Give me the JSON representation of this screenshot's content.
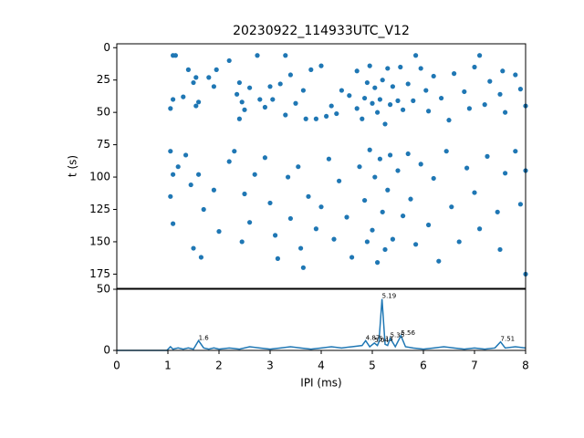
{
  "chart_data": [
    {
      "type": "scatter",
      "title": "20230922_114933UTC_V12",
      "ylabel": "t (s)",
      "color": "#1f77b4",
      "xlim": [
        0,
        8
      ],
      "ylim": [
        -3,
        186
      ],
      "y_inverted": true,
      "yticks": [
        0,
        25,
        50,
        75,
        100,
        125,
        150,
        175
      ],
      "x": [
        1.1,
        1.15,
        1.4,
        1.5,
        1.55,
        1.1,
        1.05,
        1.3,
        1.55,
        1.6,
        1.8,
        1.9,
        1.95,
        2.2,
        2.35,
        2.4,
        2.45,
        2.5,
        2.6,
        2.4,
        2.8,
        2.75,
        2.9,
        3.0,
        3.05,
        3.2,
        3.3,
        3.4,
        3.5,
        3.65,
        3.7,
        3.8,
        3.9,
        4.0,
        4.1,
        4.2,
        4.3,
        4.4,
        4.55,
        4.7,
        4.7,
        4.8,
        4.85,
        4.9,
        4.95,
        5.0,
        5.05,
        5.1,
        5.15,
        5.2,
        5.25,
        5.3,
        5.35,
        5.4,
        5.5,
        5.55,
        5.6,
        5.7,
        5.8,
        5.95,
        6.05,
        6.1,
        6.2,
        6.35,
        6.5,
        6.6,
        6.8,
        6.9,
        7.0,
        7.2,
        7.3,
        7.5,
        7.55,
        7.6,
        7.8,
        7.9,
        8.0,
        3.3,
        5.85,
        7.1,
        1.05,
        1.1,
        1.05,
        1.1,
        1.2,
        1.35,
        1.45,
        1.6,
        1.7,
        1.5,
        1.65,
        1.9,
        2.0,
        2.2,
        2.3,
        2.5,
        2.6,
        2.45,
        2.7,
        2.9,
        3.0,
        3.1,
        3.15,
        3.35,
        3.4,
        3.55,
        3.6,
        3.65,
        3.75,
        3.9,
        4.0,
        4.15,
        4.25,
        4.35,
        4.5,
        4.6,
        4.75,
        4.85,
        4.9,
        4.95,
        5.0,
        5.05,
        5.1,
        5.15,
        5.2,
        5.25,
        5.3,
        5.35,
        5.4,
        5.5,
        5.6,
        5.7,
        5.75,
        5.85,
        5.95,
        6.1,
        6.2,
        6.3,
        6.45,
        6.55,
        6.7,
        6.85,
        7.0,
        7.1,
        7.25,
        7.45,
        7.5,
        7.6,
        7.8,
        7.9,
        8.0,
        8.0
      ],
      "values": [
        6,
        6,
        17,
        27,
        23,
        40,
        47,
        38,
        45,
        42,
        23,
        30,
        17,
        10,
        36,
        27,
        42,
        48,
        31,
        55,
        40,
        6,
        46,
        30,
        40,
        28,
        52,
        21,
        43,
        33,
        55,
        17,
        55,
        14,
        53,
        45,
        51,
        33,
        37,
        18,
        47,
        55,
        39,
        27,
        14,
        43,
        31,
        50,
        40,
        25,
        59,
        16,
        44,
        30,
        41,
        15,
        48,
        28,
        41,
        16,
        33,
        49,
        22,
        39,
        56,
        20,
        34,
        47,
        15,
        44,
        26,
        36,
        18,
        50,
        21,
        32,
        45,
        6,
        6,
        6,
        80,
        98,
        115,
        136,
        92,
        83,
        106,
        98,
        125,
        155,
        162,
        110,
        142,
        88,
        80,
        113,
        135,
        150,
        98,
        85,
        120,
        145,
        163,
        100,
        132,
        92,
        155,
        170,
        115,
        140,
        123,
        86,
        148,
        103,
        131,
        162,
        92,
        118,
        150,
        79,
        141,
        100,
        166,
        86,
        127,
        156,
        110,
        83,
        148,
        95,
        130,
        82,
        117,
        152,
        90,
        137,
        101,
        165,
        80,
        123,
        150,
        93,
        112,
        140,
        84,
        127,
        156,
        97,
        80,
        121,
        175,
        95
      ]
    },
    {
      "type": "line",
      "xlabel": "IPI (ms)",
      "color": "#1f77b4",
      "xlim": [
        0,
        8
      ],
      "xticks": [
        0,
        1,
        2,
        3,
        4,
        5,
        6,
        7,
        8
      ],
      "ylim": [
        0,
        50
      ],
      "yticks": [
        0,
        50
      ],
      "x": [
        0,
        0.98,
        1.05,
        1.1,
        1.2,
        1.3,
        1.4,
        1.5,
        1.6,
        1.7,
        1.8,
        1.9,
        2.0,
        2.2,
        2.4,
        2.6,
        2.8,
        3.0,
        3.2,
        3.4,
        3.6,
        3.8,
        4.0,
        4.2,
        4.4,
        4.6,
        4.8,
        4.87,
        4.95,
        5.04,
        5.1,
        5.13,
        5.19,
        5.25,
        5.3,
        5.35,
        5.45,
        5.56,
        5.65,
        5.8,
        6.0,
        6.2,
        6.4,
        6.6,
        6.8,
        7.0,
        7.2,
        7.4,
        7.51,
        7.6,
        7.8,
        8.0
      ],
      "values": [
        0,
        0,
        3,
        1,
        2,
        1,
        2,
        1,
        8,
        2,
        1,
        2,
        1,
        2,
        1,
        3,
        2,
        1,
        2,
        3,
        2,
        1,
        2,
        3,
        2,
        3,
        4,
        8,
        3,
        6,
        4,
        7,
        42,
        5,
        4,
        10,
        3,
        12,
        3,
        2,
        1,
        2,
        3,
        2,
        1,
        2,
        1,
        2,
        7,
        2,
        3,
        2
      ],
      "annotations": [
        {
          "x": 1.6,
          "y": 8
        },
        {
          "x": 4.87,
          "y": 8
        },
        {
          "x": 5.04,
          "y": 6
        },
        {
          "x": 5.13,
          "y": 7
        },
        {
          "x": 5.19,
          "y": 42
        },
        {
          "x": 5.35,
          "y": 10
        },
        {
          "x": 5.56,
          "y": 12
        },
        {
          "x": 7.51,
          "y": 7
        }
      ]
    }
  ]
}
